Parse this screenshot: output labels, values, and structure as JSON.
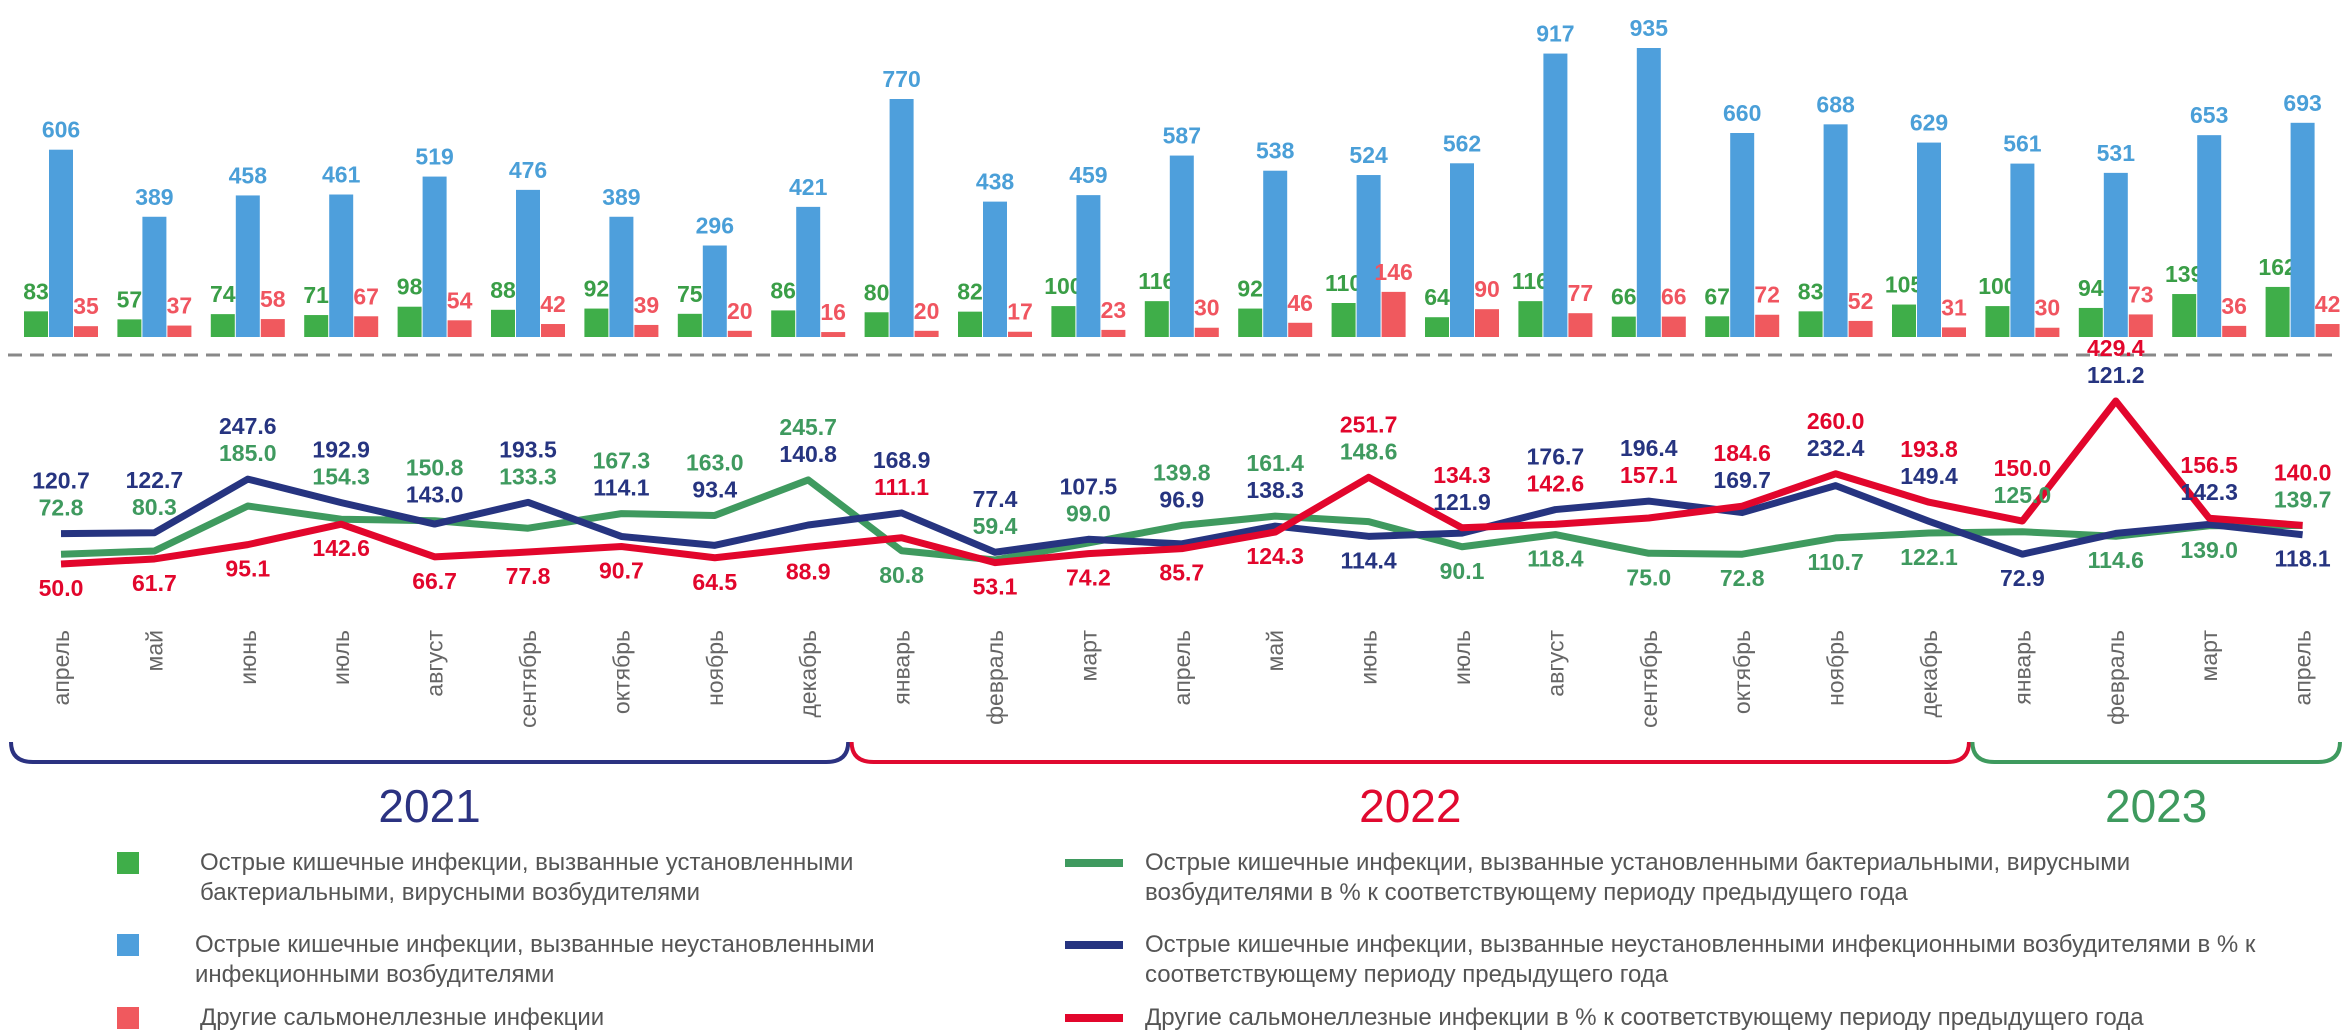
{
  "chart_data": {
    "type": "combo",
    "categories": [
      "апрель",
      "май",
      "июнь",
      "июль",
      "август",
      "сентябрь",
      "октябрь",
      "ноябрь",
      "декабрь",
      "январь",
      "февраль",
      "март",
      "апрель",
      "май",
      "июнь",
      "июль",
      "август",
      "сентябрь",
      "октябрь",
      "ноябрь",
      "декабрь",
      "январь",
      "февраль",
      "март",
      "апрель"
    ],
    "years": [
      {
        "label": "2021",
        "color": "#2b3281"
      },
      {
        "label": "2022",
        "color": "#e0092f"
      },
      {
        "label": "2023",
        "color": "#3e9a5e"
      }
    ],
    "series": [
      {
        "type": "bar",
        "name": "Острые кишечные инфекции, вызванные установленными бактериальными, вирусными возбудителями",
        "color": "#3fae49",
        "label_color": "#3a9e47",
        "values": [
          83,
          57,
          74,
          71,
          98,
          88,
          92,
          75,
          86,
          80,
          82,
          100,
          116,
          92,
          110,
          64,
          116,
          66,
          67,
          83,
          105,
          100,
          94,
          139,
          162
        ]
      },
      {
        "type": "bar",
        "name": "Острые кишечные инфекции, вызванные неустановленными инфекционными возбудителями",
        "color": "#4e9fdc",
        "label_color": "#4a9fd8",
        "values": [
          606,
          389,
          458,
          461,
          519,
          476,
          389,
          296,
          421,
          770,
          438,
          459,
          587,
          538,
          524,
          562,
          917,
          935,
          660,
          688,
          629,
          561,
          531,
          653,
          693
        ]
      },
      {
        "type": "bar",
        "name": "Другие сальмонеллезные инфекции",
        "color": "#f0595e",
        "label_color": "#f05560",
        "values": [
          35,
          37,
          58,
          67,
          54,
          42,
          39,
          20,
          16,
          20,
          17,
          23,
          30,
          46,
          146,
          90,
          77,
          66,
          72,
          52,
          31,
          30,
          73,
          36,
          42
        ]
      },
      {
        "type": "line",
        "name": "Острые кишечные инфекции, вызванные установленными бактериальными, вирусными возбудителями в % к соответствующему периоду предыдущего года",
        "color": "#3f9a5f",
        "values": [
          72.8,
          80.3,
          185.0,
          154.3,
          150.8,
          133.3,
          167.3,
          163.0,
          245.7,
          80.8,
          59.4,
          99.0,
          139.8,
          161.4,
          148.6,
          90.1,
          118.4,
          75.0,
          72.8,
          110.7,
          122.1,
          125.0,
          114.6,
          139.0,
          139.7
        ],
        "value_labels": [
          "72.8",
          "80.3",
          "185.0",
          "154.3",
          "150.8",
          "133.3",
          "167.3",
          "163.0",
          "245.7",
          "80.8",
          "59.4",
          "99.0",
          "139.8",
          "161.4",
          "148.6",
          "90.1",
          "118.4",
          "75.0",
          "72.8",
          "110.7",
          "122.1",
          "125.0",
          "114.6",
          "139.0",
          "139.7"
        ]
      },
      {
        "type": "line",
        "name": "Острые кишечные инфекции, вызванные неустановленными инфекционными возбудителями в % к соответствующему периоду предыдущего года",
        "color": "#263480",
        "values": [
          120.7,
          122.7,
          247.6,
          192.9,
          143.0,
          193.5,
          114.1,
          93.4,
          140.8,
          168.9,
          77.4,
          107.5,
          96.9,
          138.3,
          114.4,
          121.9,
          176.7,
          196.4,
          169.7,
          232.4,
          149.4,
          72.9,
          121.2,
          142.3,
          118.1
        ],
        "value_labels": [
          "120.7",
          "122.7",
          "247.6",
          "192.9",
          "143.0",
          "193.5",
          "114.1",
          "93.4",
          "140.8",
          "168.9",
          "77.4",
          "107.5",
          "96.9",
          "138.3",
          "114.4",
          "121.9",
          "176.7",
          "196.4",
          "169.7",
          "232.4",
          "149.4",
          "72.9",
          "121.2",
          "142.3",
          "118.1"
        ]
      },
      {
        "type": "line",
        "name": "Другие сальмонеллезные инфекции в % к соответствующему периоду предыдущего года",
        "color": "#e2062c",
        "values": [
          50.0,
          61.7,
          95.1,
          142.6,
          66.7,
          77.8,
          90.7,
          64.5,
          88.9,
          111.1,
          53.1,
          74.2,
          85.7,
          124.3,
          251.7,
          134.3,
          142.6,
          157.1,
          184.6,
          260.0,
          193.8,
          150.0,
          429.4,
          156.5,
          140.0
        ],
        "value_labels": [
          "50.0",
          "61.7",
          "95.1",
          "142.6",
          "66.7",
          "77.8",
          "90.7",
          "64.5",
          "88.9",
          "111.1",
          "53.1",
          "74.2",
          "85.7",
          "124.3",
          "251.7",
          "134.3",
          "142.6",
          "157.1",
          "184.6",
          "260.0",
          "193.8",
          "150.0",
          "429.4",
          "156.5",
          "140.0"
        ]
      }
    ]
  }
}
